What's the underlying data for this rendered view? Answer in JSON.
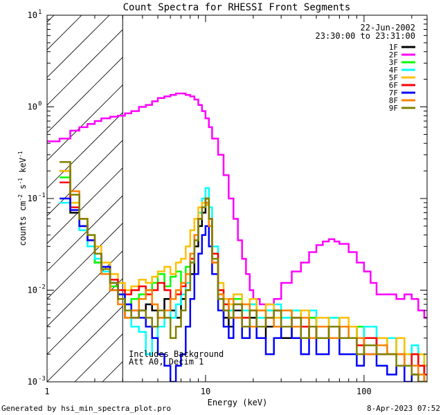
{
  "footer": {
    "left": "Generated by hsi_min_spectra_plot.pro",
    "right": "8-Apr-2023 07:52"
  },
  "annotations": {
    "date": "22-Jun-2002",
    "time_range": "23:30:00 to 23:31:00",
    "background_note": "Includes Background",
    "atten_note": "Att A0, Decim 1"
  },
  "chart_data": {
    "type": "line",
    "title": "Count Spectra for RHESSI Front Segments",
    "xlabel": "Energy (keV)",
    "ylabel": {
      "base": "counts cm",
      "exp1": "-2",
      "mid": " s",
      "exp2": "-1",
      "end": " keV",
      "exp3": "-1"
    },
    "xscale": "log",
    "yscale": "log",
    "xlim": [
      1,
      250
    ],
    "ylim": [
      0.001,
      10
    ],
    "x_ticks": [
      {
        "v": 1,
        "label": "1"
      },
      {
        "v": 10,
        "label": "10"
      },
      {
        "v": 100,
        "label": "100"
      }
    ],
    "y_ticks": [
      {
        "v": 0.001,
        "base": "10",
        "exp": "-3"
      },
      {
        "v": 0.01,
        "base": "10",
        "exp": "-2"
      },
      {
        "v": 0.1,
        "base": "10",
        "exp": "-1"
      },
      {
        "v": 1,
        "base": "10",
        "exp": "0"
      },
      {
        "v": 10,
        "base": "10",
        "exp": "1"
      }
    ],
    "shaded_region": {
      "x_from": 1,
      "x_to": 3
    },
    "legend_position": "top-right",
    "series": [
      {
        "name": "1F",
        "color": "#000000",
        "x": [
          1.2,
          1.4,
          1.6,
          1.8,
          2.0,
          2.2,
          2.5,
          2.8,
          3.1,
          3.4,
          3.8,
          4.2,
          4.6,
          5.0,
          5.5,
          6.0,
          6.5,
          7.0,
          7.5,
          8.0,
          8.5,
          9.0,
          9.5,
          10.0,
          10.5,
          11.0,
          12,
          13,
          14,
          15,
          17,
          19,
          21,
          24,
          27,
          30,
          35,
          40,
          45,
          50,
          60,
          70,
          80,
          90,
          100,
          120,
          140,
          160,
          180,
          200,
          220,
          240
        ],
        "y": [
          0.2,
          0.07,
          0.05,
          0.035,
          0.02,
          0.015,
          0.01,
          0.008,
          0.005,
          0.005,
          0.006,
          0.007,
          0.006,
          0.005,
          0.008,
          0.006,
          0.005,
          0.008,
          0.01,
          0.015,
          0.03,
          0.05,
          0.07,
          0.09,
          0.05,
          0.02,
          0.008,
          0.005,
          0.004,
          0.006,
          0.004,
          0.005,
          0.003,
          0.004,
          0.006,
          0.003,
          0.004,
          0.003,
          0.005,
          0.003,
          0.004,
          0.003,
          0.004,
          0.003,
          0.002,
          0.003,
          0.002,
          0.002,
          0.0015,
          0.002,
          0.0015,
          0.001
        ]
      },
      {
        "name": "2F",
        "color": "#ff00ff",
        "x": [
          1.0,
          1.2,
          1.4,
          1.6,
          1.8,
          2.0,
          2.2,
          2.5,
          2.8,
          3.1,
          3.4,
          3.8,
          4.2,
          4.6,
          5.0,
          5.5,
          6.0,
          6.5,
          7.0,
          7.5,
          8.0,
          8.5,
          9.0,
          9.5,
          10.0,
          10.5,
          11,
          12,
          13,
          14,
          15,
          16,
          17,
          18,
          19,
          20,
          22,
          24,
          27,
          30,
          35,
          40,
          45,
          50,
          55,
          60,
          65,
          70,
          80,
          90,
          100,
          110,
          120,
          140,
          160,
          180,
          200,
          220,
          240
        ],
        "y": [
          0.42,
          0.45,
          0.55,
          0.6,
          0.65,
          0.7,
          0.75,
          0.78,
          0.8,
          0.85,
          0.9,
          1.0,
          1.05,
          1.15,
          1.25,
          1.3,
          1.35,
          1.4,
          1.4,
          1.35,
          1.3,
          1.2,
          1.05,
          0.9,
          0.75,
          0.6,
          0.45,
          0.3,
          0.18,
          0.1,
          0.06,
          0.035,
          0.022,
          0.015,
          0.01,
          0.008,
          0.007,
          0.007,
          0.008,
          0.012,
          0.016,
          0.02,
          0.026,
          0.031,
          0.034,
          0.036,
          0.034,
          0.032,
          0.026,
          0.02,
          0.016,
          0.012,
          0.009,
          0.009,
          0.008,
          0.009,
          0.008,
          0.006,
          0.005
        ]
      },
      {
        "name": "3F",
        "color": "#00ff00",
        "x": [
          1.2,
          1.4,
          1.6,
          1.8,
          2.0,
          2.2,
          2.5,
          2.8,
          3.1,
          3.4,
          3.8,
          4.2,
          4.6,
          5.0,
          5.5,
          6.0,
          6.5,
          7.0,
          7.5,
          8.0,
          8.5,
          9.0,
          9.5,
          10.0,
          10.5,
          11,
          12,
          13,
          14,
          15,
          17,
          19,
          21,
          24,
          27,
          30,
          35,
          40,
          45,
          50,
          60,
          70,
          80,
          90,
          100,
          120,
          140,
          160,
          180,
          200,
          220,
          240
        ],
        "y": [
          0.17,
          0.09,
          0.05,
          0.03,
          0.02,
          0.015,
          0.011,
          0.009,
          0.007,
          0.008,
          0.009,
          0.01,
          0.012,
          0.015,
          0.011,
          0.014,
          0.016,
          0.012,
          0.018,
          0.025,
          0.04,
          0.06,
          0.08,
          0.1,
          0.06,
          0.025,
          0.009,
          0.007,
          0.006,
          0.008,
          0.005,
          0.007,
          0.005,
          0.006,
          0.004,
          0.005,
          0.006,
          0.004,
          0.005,
          0.004,
          0.005,
          0.004,
          0.003,
          0.004,
          0.003,
          0.003,
          0.002,
          0.003,
          0.002,
          0.002,
          0.002,
          0.0015
        ]
      },
      {
        "name": "4F",
        "color": "#00ffff",
        "x": [
          1.2,
          1.4,
          1.6,
          1.8,
          2.0,
          2.2,
          2.5,
          2.8,
          3.1,
          3.4,
          3.8,
          4.2,
          4.6,
          5.0,
          5.5,
          6.0,
          6.5,
          7.0,
          7.5,
          8.0,
          8.5,
          9.0,
          9.5,
          10.0,
          10.5,
          11,
          12,
          13,
          14,
          15,
          17,
          19,
          21,
          24,
          27,
          30,
          35,
          40,
          45,
          50,
          60,
          70,
          80,
          90,
          100,
          120,
          140,
          160,
          180,
          200,
          220,
          240
        ],
        "y": [
          0.09,
          0.08,
          0.045,
          0.03,
          0.022,
          0.016,
          0.012,
          0.009,
          0.006,
          0.004,
          0.0035,
          0.002,
          0.003,
          0.004,
          0.006,
          0.005,
          0.007,
          0.009,
          0.012,
          0.02,
          0.04,
          0.07,
          0.1,
          0.13,
          0.08,
          0.03,
          0.01,
          0.007,
          0.006,
          0.009,
          0.006,
          0.007,
          0.005,
          0.006,
          0.007,
          0.005,
          0.006,
          0.004,
          0.006,
          0.004,
          0.005,
          0.004,
          0.004,
          0.003,
          0.004,
          0.003,
          0.003,
          0.002,
          0.002,
          0.0025,
          0.002,
          0.0015
        ]
      },
      {
        "name": "5F",
        "color": "#ffbf00",
        "x": [
          1.2,
          1.4,
          1.6,
          1.8,
          2.0,
          2.2,
          2.5,
          2.8,
          3.1,
          3.4,
          3.8,
          4.2,
          4.6,
          5.0,
          5.5,
          6.0,
          6.5,
          7.0,
          7.5,
          8.0,
          8.5,
          9.0,
          9.5,
          10.0,
          10.5,
          11,
          12,
          13,
          14,
          15,
          17,
          19,
          21,
          24,
          27,
          30,
          35,
          40,
          45,
          50,
          60,
          70,
          80,
          90,
          100,
          120,
          140,
          160,
          180,
          200,
          220,
          240
        ],
        "y": [
          0.2,
          0.09,
          0.06,
          0.04,
          0.03,
          0.02,
          0.015,
          0.012,
          0.01,
          0.011,
          0.013,
          0.012,
          0.014,
          0.016,
          0.018,
          0.015,
          0.02,
          0.022,
          0.03,
          0.045,
          0.06,
          0.08,
          0.09,
          0.085,
          0.05,
          0.025,
          0.012,
          0.008,
          0.007,
          0.009,
          0.007,
          0.008,
          0.006,
          0.007,
          0.005,
          0.006,
          0.005,
          0.006,
          0.004,
          0.005,
          0.004,
          0.005,
          0.004,
          0.003,
          0.003,
          0.003,
          0.002,
          0.003,
          0.002,
          0.002,
          0.002,
          0.0015
        ]
      },
      {
        "name": "6F",
        "color": "#ff0000",
        "x": [
          1.2,
          1.4,
          1.6,
          1.8,
          2.0,
          2.2,
          2.5,
          2.8,
          3.1,
          3.4,
          3.8,
          4.2,
          4.6,
          5.0,
          5.5,
          6.0,
          6.5,
          7.0,
          7.5,
          8.0,
          8.5,
          9.0,
          9.5,
          10.0,
          10.5,
          11,
          12,
          13,
          14,
          15,
          17,
          19,
          21,
          24,
          27,
          30,
          35,
          40,
          45,
          50,
          60,
          70,
          80,
          90,
          100,
          120,
          140,
          160,
          180,
          200,
          220,
          240
        ],
        "y": [
          0.15,
          0.08,
          0.05,
          0.035,
          0.025,
          0.018,
          0.013,
          0.01,
          0.009,
          0.01,
          0.011,
          0.009,
          0.01,
          0.012,
          0.01,
          0.008,
          0.009,
          0.011,
          0.015,
          0.022,
          0.04,
          0.06,
          0.08,
          0.1,
          0.06,
          0.025,
          0.01,
          0.007,
          0.005,
          0.007,
          0.005,
          0.006,
          0.004,
          0.005,
          0.006,
          0.004,
          0.005,
          0.004,
          0.004,
          0.003,
          0.004,
          0.003,
          0.003,
          0.0025,
          0.003,
          0.002,
          0.002,
          0.002,
          0.0015,
          0.002,
          0.0015,
          0.0012
        ]
      },
      {
        "name": "7F",
        "color": "#0000ff",
        "x": [
          1.2,
          1.4,
          1.6,
          1.8,
          2.0,
          2.2,
          2.5,
          2.8,
          3.1,
          3.4,
          3.8,
          4.2,
          4.6,
          5.0,
          5.5,
          6.0,
          6.5,
          7.0,
          7.5,
          8.0,
          8.5,
          9.0,
          9.5,
          10.0,
          10.5,
          11,
          12,
          13,
          14,
          15,
          17,
          19,
          21,
          24,
          27,
          30,
          35,
          40,
          45,
          50,
          60,
          70,
          80,
          90,
          100,
          120,
          140,
          160,
          180,
          200,
          220,
          240
        ],
        "y": [
          0.1,
          0.075,
          0.05,
          0.035,
          0.025,
          0.018,
          0.012,
          0.009,
          0.007,
          0.006,
          0.005,
          0.004,
          0.003,
          0.002,
          0.0015,
          0.001,
          0.0015,
          0.002,
          0.004,
          0.008,
          0.015,
          0.025,
          0.04,
          0.05,
          0.03,
          0.015,
          0.006,
          0.004,
          0.003,
          0.005,
          0.003,
          0.004,
          0.003,
          0.002,
          0.003,
          0.004,
          0.003,
          0.002,
          0.003,
          0.002,
          0.003,
          0.002,
          0.002,
          0.0015,
          0.002,
          0.0015,
          0.0012,
          0.0015,
          0.001,
          0.0012,
          0.001,
          0.001
        ]
      },
      {
        "name": "8F",
        "color": "#ff8000",
        "x": [
          1.2,
          1.4,
          1.6,
          1.8,
          2.0,
          2.2,
          2.5,
          2.8,
          3.1,
          3.4,
          3.8,
          4.2,
          4.6,
          5.0,
          5.5,
          6.0,
          6.5,
          7.0,
          7.5,
          8.0,
          8.5,
          9.0,
          9.5,
          10.0,
          10.5,
          11,
          12,
          13,
          14,
          15,
          17,
          19,
          21,
          24,
          27,
          30,
          35,
          40,
          45,
          50,
          60,
          70,
          80,
          90,
          100,
          120,
          140,
          160,
          180,
          200,
          220,
          240
        ],
        "y": [
          0.25,
          0.12,
          0.06,
          0.04,
          0.025,
          0.015,
          0.01,
          0.007,
          0.005,
          0.006,
          0.008,
          0.01,
          0.007,
          0.005,
          0.006,
          0.008,
          0.01,
          0.012,
          0.015,
          0.025,
          0.04,
          0.06,
          0.08,
          0.09,
          0.05,
          0.02,
          0.009,
          0.006,
          0.008,
          0.005,
          0.007,
          0.004,
          0.006,
          0.005,
          0.004,
          0.006,
          0.004,
          0.005,
          0.003,
          0.004,
          0.003,
          0.004,
          0.003,
          0.003,
          0.002,
          0.0025,
          0.002,
          0.002,
          0.0015,
          0.0015,
          0.0012,
          0.001
        ]
      },
      {
        "name": "9F",
        "color": "#808000",
        "x": [
          1.2,
          1.4,
          1.6,
          1.8,
          2.0,
          2.2,
          2.5,
          2.8,
          3.1,
          3.4,
          3.8,
          4.2,
          4.6,
          5.0,
          5.5,
          6.0,
          6.5,
          7.0,
          7.5,
          8.0,
          8.5,
          9.0,
          9.5,
          10.0,
          10.5,
          11,
          12,
          13,
          14,
          15,
          17,
          19,
          21,
          24,
          27,
          30,
          35,
          40,
          45,
          50,
          60,
          70,
          80,
          90,
          100,
          120,
          140,
          160,
          180,
          200,
          220,
          240
        ],
        "y": [
          0.25,
          0.11,
          0.06,
          0.04,
          0.025,
          0.017,
          0.012,
          0.008,
          0.006,
          0.005,
          0.006,
          0.005,
          0.004,
          0.006,
          0.005,
          0.003,
          0.004,
          0.006,
          0.01,
          0.02,
          0.035,
          0.06,
          0.08,
          0.1,
          0.06,
          0.022,
          0.008,
          0.006,
          0.005,
          0.007,
          0.004,
          0.006,
          0.004,
          0.005,
          0.006,
          0.004,
          0.005,
          0.003,
          0.004,
          0.003,
          0.004,
          0.003,
          0.003,
          0.002,
          0.0025,
          0.002,
          0.002,
          0.0015,
          0.0015,
          0.0012,
          0.001,
          0.001
        ]
      }
    ]
  }
}
